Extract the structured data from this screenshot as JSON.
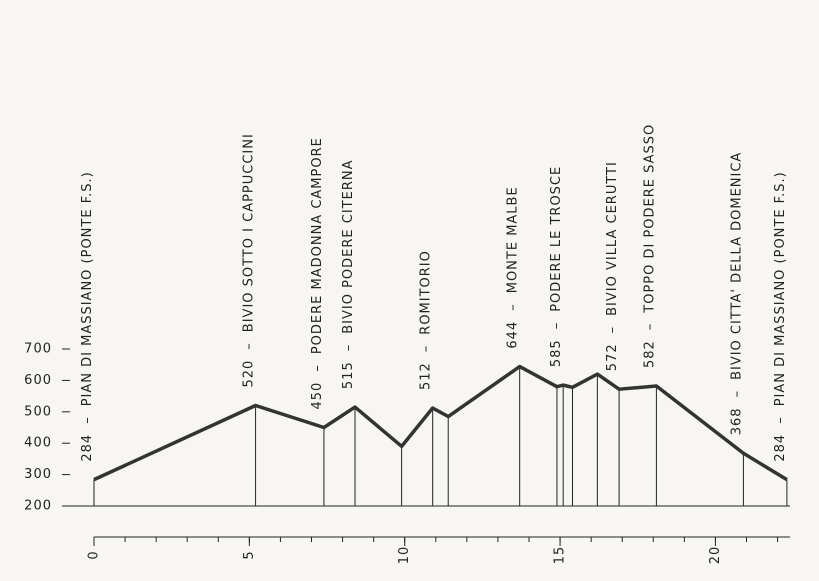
{
  "chart_data": {
    "type": "line",
    "x": [
      0,
      5.2,
      7.4,
      8.4,
      9.9,
      10.9,
      11.4,
      13.7,
      14.9,
      15.1,
      15.4,
      16.2,
      16.9,
      18.1,
      20.9,
      22.3
    ],
    "values": [
      284,
      520,
      450,
      515,
      390,
      512,
      485,
      644,
      580,
      585,
      578,
      620,
      572,
      582,
      368,
      284
    ],
    "names": [
      "PIAN DI MASSIANO (PONTE F.S.)",
      "BIVIO SOTTO I CAPPUCCINI",
      "PODERE MADONNA CAMPORE",
      "BIVIO PODERE CITERNA",
      null,
      "ROMITORIO",
      null,
      "MONTE MALBE",
      null,
      "PODERE LE TROSCE",
      null,
      null,
      "BIVIO VILLA CERUTTI",
      "TOPPO DI PODERE SASSO",
      "BIVIO CITTA' DELLA DOMENICA",
      "PIAN DI MASSIANO (PONTE F.S.)"
    ],
    "label_separator": "–",
    "color": "#333333",
    "xlim": [
      0,
      22.4
    ],
    "xticks": [
      0,
      5,
      10,
      15,
      20
    ],
    "xminorticks": [
      0,
      1,
      2,
      3,
      4,
      5,
      6,
      7,
      8,
      9,
      10,
      11,
      12,
      13,
      14,
      15,
      16,
      17,
      18,
      19,
      20,
      21,
      22
    ],
    "ylim": [
      200,
      700
    ],
    "yticks": [
      200,
      300,
      400,
      500,
      600,
      700
    ]
  }
}
